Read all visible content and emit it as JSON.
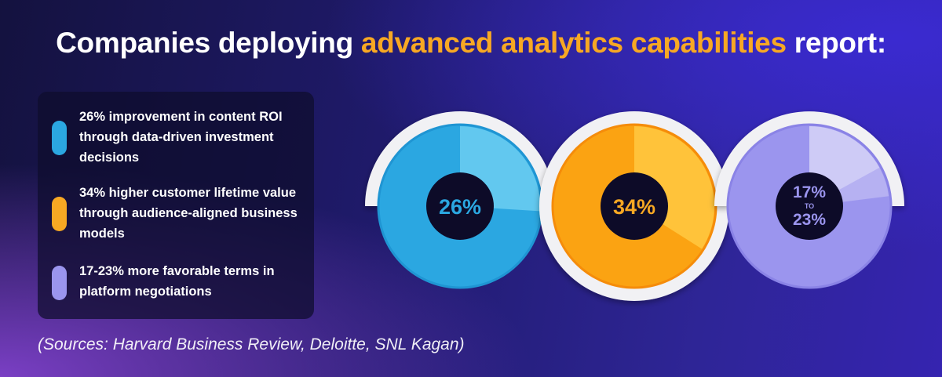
{
  "title": {
    "prefix": "Companies deploying",
    "highlight": "advanced analytics capabilities",
    "suffix": "report:"
  },
  "legend": [
    {
      "text": "26% improvement in content ROI through data-driven investment decisions",
      "color": "#2ba7e1"
    },
    {
      "text": "34% higher customer lifetime value through audience-aligned business models",
      "color": "#f7a823"
    },
    {
      "text": "17-23% more favorable terms in platform negotiations",
      "color": "#9b95ee"
    }
  ],
  "sources": "(Sources: Harvard Business Review, Deloitte, SNL Kagan)",
  "chart_data": [
    {
      "type": "pie",
      "values": [
        26
      ],
      "center_label": "26%",
      "color": "#2ba7e1",
      "highlight_color": "#62c8ef"
    },
    {
      "type": "pie",
      "values": [
        34
      ],
      "center_label": "34%",
      "color": "#fba312",
      "highlight_color": "#ffc33a"
    },
    {
      "type": "pie",
      "values": [
        17,
        23
      ],
      "center_label_top": "17%",
      "center_label_mid": "TO",
      "center_label_bottom": "23%",
      "color": "#9b95ee",
      "highlight_colors": [
        "#cecbf6",
        "#b6b1f2"
      ]
    }
  ]
}
